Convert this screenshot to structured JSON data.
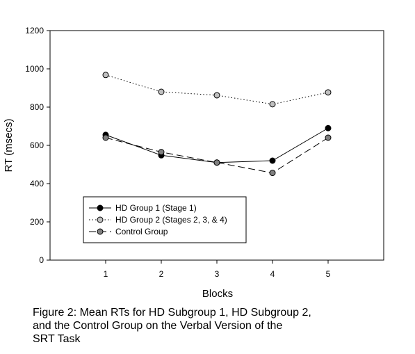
{
  "chart_data": {
    "type": "line",
    "xlabel": "Blocks",
    "ylabel": "RT (msecs)",
    "x": [
      1,
      2,
      3,
      4,
      5
    ],
    "xticks": [
      "1",
      "2",
      "3",
      "4",
      "5"
    ],
    "xlim": [
      0,
      6
    ],
    "ylim": [
      0,
      1200
    ],
    "yticks": [
      "0",
      "200",
      "400",
      "600",
      "800",
      "1000",
      "1200"
    ],
    "legend_position": "bottom-left",
    "grid": false,
    "series": [
      {
        "name": "HD Group 1 (Stage 1)",
        "values": [
          655,
          548,
          510,
          520,
          690
        ],
        "line": "solid",
        "marker_color": "#000000"
      },
      {
        "name": "HD Group 2 (Stages 2, 3, & 4)",
        "values": [
          968,
          880,
          862,
          815,
          877
        ],
        "line": "dotted",
        "marker_color": "#c0c0c0"
      },
      {
        "name": "Control Group",
        "values": [
          640,
          565,
          510,
          456,
          640
        ],
        "line": "dashed",
        "marker_color": "#808080"
      }
    ]
  },
  "caption": "Figure 2: Mean RTs for HD Subgroup 1, HD Subgroup 2,\nand the Control Group on the Verbal Version of the\nSRT Task"
}
